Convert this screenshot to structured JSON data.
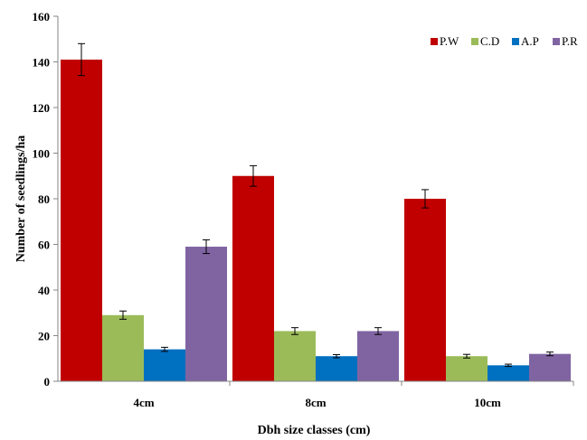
{
  "chart_data": {
    "type": "bar",
    "xlabel": "Dbh size classes (cm)",
    "ylabel": "Number of seedlings/ha",
    "ylim": [
      0,
      160
    ],
    "yticks": [
      0,
      20,
      40,
      60,
      80,
      100,
      120,
      140,
      160
    ],
    "categories": [
      "4cm",
      "8cm",
      "10cm"
    ],
    "series": [
      {
        "name": "P.W",
        "color": "#c00000",
        "values": [
          141,
          90,
          80
        ],
        "errors": [
          7,
          4.5,
          4
        ]
      },
      {
        "name": "C.D",
        "color": "#9bbb59",
        "values": [
          29,
          22,
          11
        ],
        "errors": [
          1.8,
          1.5,
          0.8
        ]
      },
      {
        "name": "A.P",
        "color": "#0070c0",
        "values": [
          14,
          11,
          7
        ],
        "errors": [
          0.9,
          0.7,
          0.5
        ]
      },
      {
        "name": "P.R",
        "color": "#8064a2",
        "values": [
          59,
          22,
          12
        ],
        "errors": [
          3,
          1.5,
          0.8
        ]
      }
    ],
    "legend_position": "top-right",
    "error_bars": true,
    "grid": false
  }
}
